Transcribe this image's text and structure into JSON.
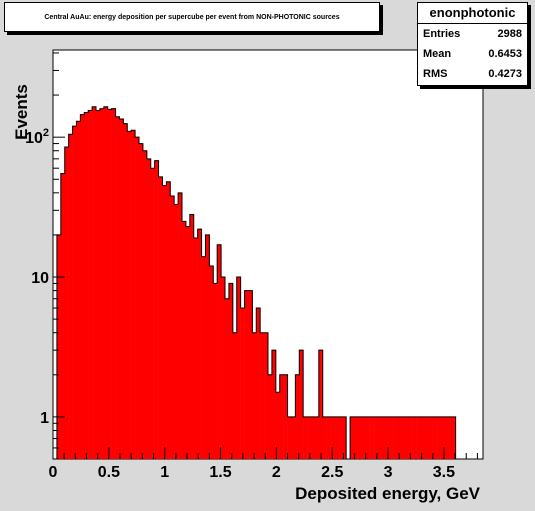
{
  "title": "Central AuAu: energy deposition per supercube per event from NON-PHOTONIC sources",
  "stats": {
    "name": "enonphotonic",
    "rows": [
      {
        "label": "Entries",
        "value": "2988"
      },
      {
        "label": "Mean",
        "value": "0.6453"
      },
      {
        "label": "RMS",
        "value": "0.4273"
      }
    ]
  },
  "chart_data": {
    "type": "bar",
    "title": "Central AuAu: energy deposition per supercube per event from NON-PHOTONIC sources",
    "xlabel": "Deposited energy, GeV",
    "ylabel": "Events",
    "xlim": [
      0,
      3.85
    ],
    "ylim": [
      0.5,
      420
    ],
    "yscale": "log",
    "grid": false,
    "bin_width": 0.035,
    "x_ticks": [
      "0",
      "0.5",
      "1",
      "1.5",
      "2",
      "2.5",
      "3",
      "3.5"
    ],
    "x_tick_values": [
      0,
      0.5,
      1,
      1.5,
      2,
      2.5,
      3,
      3.5
    ],
    "y_ticks": [
      "1",
      "10",
      "10^2"
    ],
    "y_tick_values": [
      1,
      10,
      100
    ],
    "fill_color": "#ff0000",
    "bin_low_edges": [
      0.035,
      0.07,
      0.105,
      0.14,
      0.175,
      0.21,
      0.245,
      0.28,
      0.315,
      0.35,
      0.385,
      0.42,
      0.455,
      0.49,
      0.525,
      0.56,
      0.595,
      0.63,
      0.665,
      0.7,
      0.735,
      0.77,
      0.805,
      0.84,
      0.875,
      0.91,
      0.945,
      0.98,
      1.015,
      1.05,
      1.085,
      1.12,
      1.155,
      1.19,
      1.225,
      1.26,
      1.295,
      1.33,
      1.365,
      1.4,
      1.435,
      1.47,
      1.505,
      1.54,
      1.575,
      1.61,
      1.645,
      1.68,
      1.715,
      1.75,
      1.785,
      1.82,
      1.855,
      1.89,
      1.925,
      1.96,
      1.995,
      2.03,
      2.065,
      2.1,
      2.135,
      2.17,
      2.205,
      2.24,
      2.275,
      2.31,
      2.345,
      2.38,
      2.415,
      2.45,
      2.485,
      2.52,
      2.555,
      2.59,
      2.625,
      2.66,
      2.695,
      2.73,
      2.765,
      2.8,
      2.835,
      2.87,
      2.905,
      2.94,
      2.975,
      3.01,
      3.045,
      3.08,
      3.115,
      3.15,
      3.185,
      3.22,
      3.255,
      3.29,
      3.325,
      3.36,
      3.395,
      3.43,
      3.465,
      3.5,
      3.535,
      3.57
    ],
    "values": [
      20,
      55,
      85,
      105,
      120,
      130,
      145,
      150,
      155,
      165,
      155,
      160,
      165,
      158,
      160,
      140,
      135,
      125,
      110,
      112,
      100,
      90,
      80,
      70,
      60,
      68,
      52,
      45,
      48,
      38,
      33,
      40,
      25,
      23,
      28,
      19,
      22,
      14,
      20,
      12,
      9,
      17,
      10,
      7,
      9,
      4,
      10,
      6,
      8,
      8,
      4,
      6,
      4,
      4,
      2,
      3,
      1.5,
      2,
      2,
      1,
      1,
      2,
      3,
      1,
      1,
      1,
      1,
      3,
      1,
      1,
      1,
      1,
      1,
      1,
      0,
      1,
      1,
      1,
      1,
      1,
      1,
      1,
      1,
      1,
      1,
      1,
      1,
      1,
      1,
      1,
      1,
      1,
      1,
      1,
      1,
      1,
      1,
      1,
      1,
      1,
      1,
      1
    ]
  }
}
